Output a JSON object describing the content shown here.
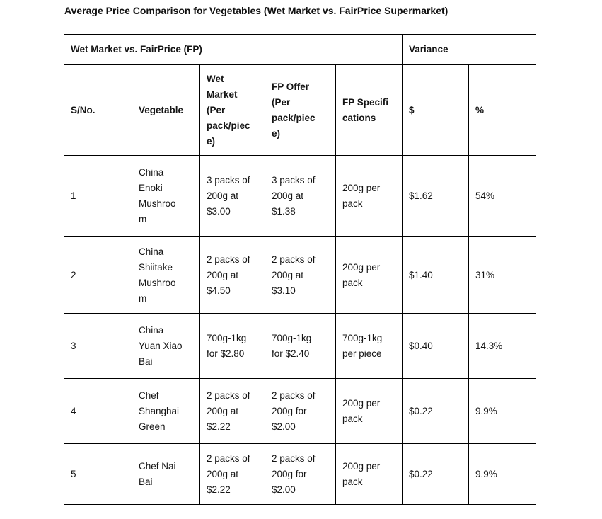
{
  "page_title": "Average Price Comparison for Vegetables (Wet Market vs. FairPrice Supermarket)",
  "table": {
    "group_headers": [
      {
        "label": "Wet Market vs. FairPrice (FP)"
      },
      {
        "label": "Variance"
      }
    ],
    "column_headers": [
      "S/No.",
      "Vegetable",
      "Wet\nMarket\n(Per\npack/piec\ne)",
      "FP Offer\n(Per\npack/piec\ne)",
      "FP Specifi\ncations",
      "$",
      "%"
    ],
    "rows": [
      {
        "sno": "1",
        "vegetable": "China\nEnoki\nMushroo\nm",
        "wet_market": "3 packs of\n200g at\n$3.00",
        "fp_offer": "3 packs of\n200g at\n$1.38",
        "fp_specifications": "200g per\npack",
        "variance_dollar": "$1.62",
        "variance_percent": "54%"
      },
      {
        "sno": "2",
        "vegetable": "China\nShiitake\nMushroo\nm",
        "wet_market": "2 packs of\n200g at\n$4.50",
        "fp_offer": "2 packs of\n200g at\n$3.10",
        "fp_specifications": "200g per\npack",
        "variance_dollar": "$1.40",
        "variance_percent": "31%"
      },
      {
        "sno": "3",
        "vegetable": "China\nYuan Xiao\nBai",
        "wet_market": "700g-1kg\nfor $2.80",
        "fp_offer": "700g-1kg\nfor $2.40",
        "fp_specifications": "700g-1kg\nper piece",
        "variance_dollar": "$0.40",
        "variance_percent": "14.3%"
      },
      {
        "sno": "4",
        "vegetable": "Chef\nShanghai\nGreen",
        "wet_market": "2 packs of\n200g at\n$2.22",
        "fp_offer": "2 packs of\n200g for\n$2.00",
        "fp_specifications": "200g per\npack",
        "variance_dollar": "$0.22",
        "variance_percent": "9.9%"
      },
      {
        "sno": "5",
        "vegetable": "Chef Nai\nBai",
        "wet_market": "2 packs of\n200g at\n$2.22",
        "fp_offer": "2 packs of\n200g for\n$2.00",
        "fp_specifications": "200g per\npack",
        "variance_dollar": "$0.22",
        "variance_percent": "9.9%"
      }
    ]
  }
}
